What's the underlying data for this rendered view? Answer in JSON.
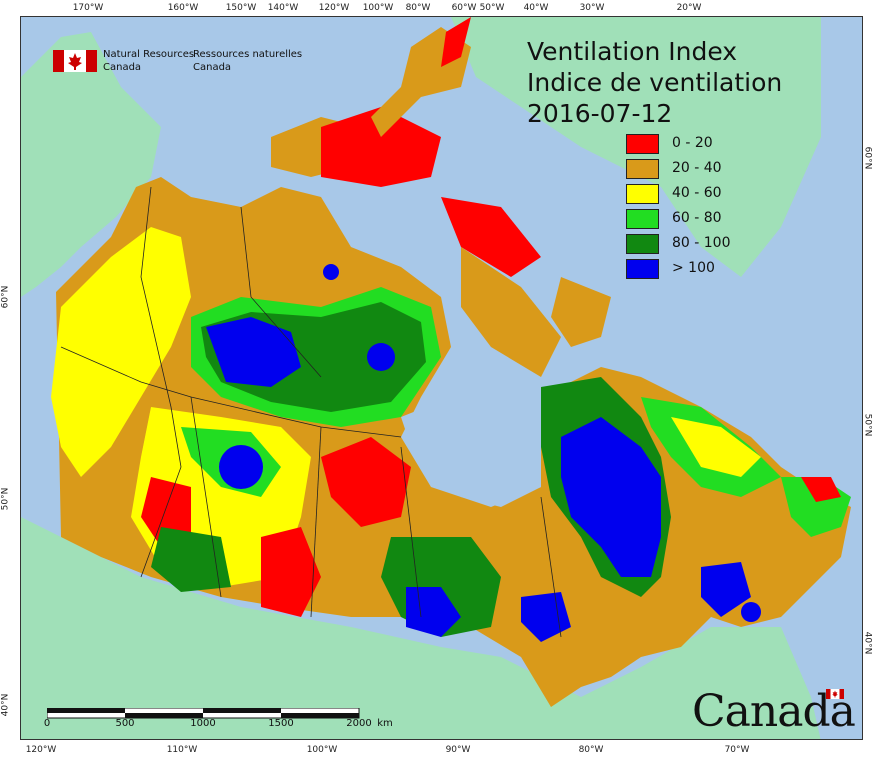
{
  "title": {
    "en": "Ventilation Index",
    "fr": "Indice de ventilation",
    "date": "2016-07-12"
  },
  "agency": {
    "en_line1": "Natural Resources",
    "en_line2": "Canada",
    "fr_line1": "Ressources naturelles",
    "fr_line2": "Canada"
  },
  "legend": [
    {
      "label": "0 - 20",
      "color": "#ff0000"
    },
    {
      "label": "20 - 40",
      "color": "#d99a1a"
    },
    {
      "label": "40 - 60",
      "color": "#ffff00"
    },
    {
      "label": "60 - 80",
      "color": "#22dd22"
    },
    {
      "label": "80 - 100",
      "color": "#118811"
    },
    {
      "label": "> 100",
      "color": "#0000ee"
    }
  ],
  "top_ticks": [
    "170°W",
    "160°W",
    "150°W",
    "140°W",
    "120°W",
    "100°W",
    "80°W",
    "60°W",
    "50°W",
    "40°W",
    "30°W",
    "20°W"
  ],
  "bottom_ticks": [
    "120°W",
    "110°W",
    "100°W",
    "90°W",
    "80°W",
    "70°W"
  ],
  "left_ticks": [
    "60°N",
    "50°N",
    "40°N"
  ],
  "right_ticks": [
    "60°N",
    "50°N",
    "40°N"
  ],
  "scale": {
    "labels": [
      "0",
      "500",
      "1000",
      "1500",
      "2000"
    ],
    "unit": "km"
  },
  "wordmark": "Canada",
  "colors": {
    "ocean": "#a8c8e8",
    "land_outside": "#a0e0b8",
    "border": "#222222"
  }
}
